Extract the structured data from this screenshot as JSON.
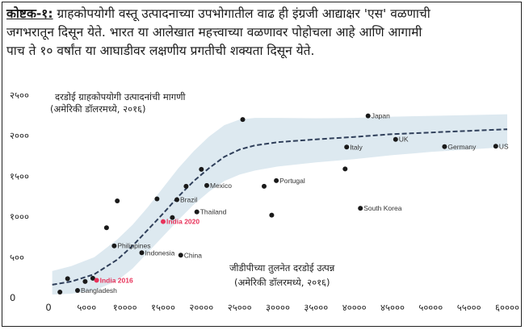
{
  "caption": {
    "label": "कोष्टक-१:",
    "line1": "ग्राहकोपयोगी वस्तू उत्पादनाच्या उपभोगातील वाढ ही इंग्रजी आद्याक्षर 'एस' वळणाची",
    "line2": "जगभरातून दिसून येते. भारत या आलेखात महत्त्वाच्या वळणावर पोहोचला आहे आणि आगामी",
    "line3": "पाच ते १० वर्षांत या आघाडीवर लक्षणीय प्रगतीची शक्यता दिसून येते."
  },
  "chart_data": {
    "type": "scatter",
    "ylabel_line1": "दरडोई ग्राहकोपयोगी उत्पादनांची मागणी",
    "ylabel_line2": "(अमेरिकी डॉलरमध्ये, २०१६)",
    "xlabel_line1": "जीडीपीच्या तुलनेत दरडोई उत्पन्न",
    "xlabel_line2": "(अमेरिकी डॉलरमध्ये, २०१६)",
    "xlim": [
      0,
      60000
    ],
    "ylim": [
      0,
      2500
    ],
    "x_ticks": [
      {
        "v": 0,
        "label": "0"
      },
      {
        "v": 5000,
        "label": "५०००"
      },
      {
        "v": 10000,
        "label": "१००००"
      },
      {
        "v": 15000,
        "label": "१५०००"
      },
      {
        "v": 20000,
        "label": "२००००"
      },
      {
        "v": 25000,
        "label": "२५०००"
      },
      {
        "v": 30000,
        "label": "३००००"
      },
      {
        "v": 35000,
        "label": "३५०००"
      },
      {
        "v": 40000,
        "label": "४००००"
      },
      {
        "v": 45000,
        "label": "४५०००"
      },
      {
        "v": 50000,
        "label": "५००००"
      },
      {
        "v": 55000,
        "label": "५५०००"
      },
      {
        "v": 60000,
        "label": "६००००"
      }
    ],
    "y_ticks": [
      {
        "v": 0,
        "label": "0"
      },
      {
        "v": 500,
        "label": "५००"
      },
      {
        "v": 1000,
        "label": "१०००"
      },
      {
        "v": 1500,
        "label": "१५००"
      },
      {
        "v": 2000,
        "label": "२०००"
      },
      {
        "v": 2500,
        "label": "२५००"
      }
    ],
    "trend": {
      "x": [
        500,
        3000,
        6000,
        9000,
        11000,
        13000,
        15000,
        17000,
        19000,
        21000,
        23000,
        25000,
        27000,
        30000,
        35000,
        40000,
        45000,
        50000,
        55000,
        60000
      ],
      "y": [
        160,
        200,
        290,
        470,
        640,
        840,
        1040,
        1250,
        1440,
        1600,
        1740,
        1830,
        1880,
        1920,
        1955,
        1985,
        2020,
        2040,
        2060,
        2080
      ]
    },
    "band": {
      "x": [
        500,
        3000,
        6000,
        9000,
        11000,
        13000,
        15000,
        17000,
        19000,
        21000,
        23000,
        25000,
        27000,
        30000,
        35000,
        40000,
        45000,
        50000,
        55000,
        60000
      ],
      "upper": [
        330,
        390,
        500,
        720,
        900,
        1120,
        1360,
        1600,
        1810,
        1990,
        2130,
        2200,
        2220,
        2220,
        2215,
        2220,
        2235,
        2245,
        2255,
        2265
      ],
      "lower": [
        40,
        50,
        90,
        210,
        360,
        560,
        760,
        960,
        1150,
        1310,
        1440,
        1520,
        1570,
        1620,
        1670,
        1710,
        1760,
        1800,
        1830,
        1860
      ]
    },
    "points": [
      {
        "x": 1500,
        "y": 70,
        "label": ""
      },
      {
        "x": 2500,
        "y": 235,
        "label": ""
      },
      {
        "x": 3800,
        "y": 90,
        "label": "Bangladesh"
      },
      {
        "x": 4800,
        "y": 200,
        "label": ""
      },
      {
        "x": 5800,
        "y": 240,
        "label": ""
      },
      {
        "x": 6300,
        "y": 215,
        "label": "India 2016",
        "highlight": true
      },
      {
        "x": 7600,
        "y": 865,
        "label": ""
      },
      {
        "x": 8600,
        "y": 640,
        "label": "Philippines"
      },
      {
        "x": 9000,
        "y": 1195,
        "label": ""
      },
      {
        "x": 12200,
        "y": 555,
        "label": "Indonesia"
      },
      {
        "x": 14200,
        "y": 1220,
        "label": ""
      },
      {
        "x": 15000,
        "y": 940,
        "label": "India 2020",
        "highlight": true
      },
      {
        "x": 16200,
        "y": 990,
        "label": ""
      },
      {
        "x": 16800,
        "y": 1210,
        "label": "Brazil"
      },
      {
        "x": 17300,
        "y": 525,
        "label": "China"
      },
      {
        "x": 18000,
        "y": 1375,
        "label": ""
      },
      {
        "x": 19400,
        "y": 1060,
        "label": "Thailand"
      },
      {
        "x": 20000,
        "y": 1585,
        "label": ""
      },
      {
        "x": 20700,
        "y": 1385,
        "label": "Mexico"
      },
      {
        "x": 25400,
        "y": 2200,
        "label": ""
      },
      {
        "x": 28200,
        "y": 1375,
        "label": ""
      },
      {
        "x": 29200,
        "y": 1020,
        "label": ""
      },
      {
        "x": 29800,
        "y": 1445,
        "label": "Portugal"
      },
      {
        "x": 38800,
        "y": 1590,
        "label": ""
      },
      {
        "x": 39000,
        "y": 1860,
        "label": "Italy"
      },
      {
        "x": 40800,
        "y": 1105,
        "label": "South Korea"
      },
      {
        "x": 41800,
        "y": 2245,
        "label": "Japan"
      },
      {
        "x": 45400,
        "y": 1955,
        "label": "UK"
      },
      {
        "x": 51800,
        "y": 1865,
        "label": "Germany"
      },
      {
        "x": 58500,
        "y": 1870,
        "label": "US"
      }
    ]
  }
}
